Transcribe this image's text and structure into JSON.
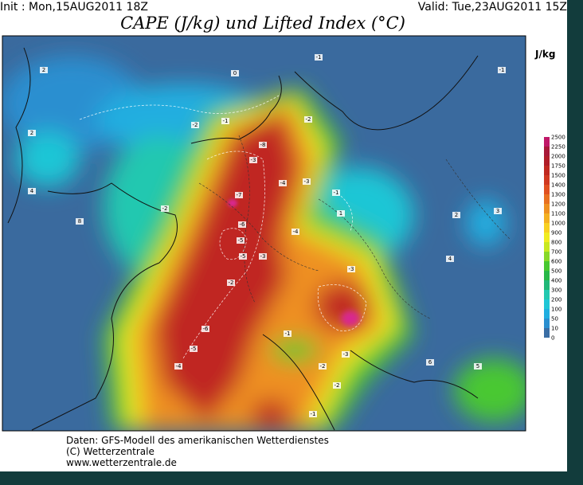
{
  "header": {
    "init": "Init : Mon,15AUG2011 18Z",
    "valid": "Valid: Tue,23AUG2011 15Z",
    "title": "CAPE (J/kg) und Lifted Index (°C)"
  },
  "colorbar": {
    "unit": "J/kg",
    "levels": [
      0,
      10,
      50,
      100,
      200,
      300,
      400,
      500,
      600,
      700,
      800,
      900,
      1000,
      1100,
      1200,
      1300,
      1400,
      1500,
      1750,
      2000,
      2250,
      2500
    ],
    "colors": [
      "#3a6ea5",
      "#2a8fd0",
      "#20aee0",
      "#1fc6d6",
      "#22c8b0",
      "#20b878",
      "#28b848",
      "#48c830",
      "#88d828",
      "#c8e820",
      "#f0ec20",
      "#f8d020",
      "#f4b020",
      "#ee9020",
      "#e87020",
      "#e05020",
      "#d03820",
      "#c02820",
      "#b01c28",
      "#a81838",
      "#c01868"
    ]
  },
  "map_labels": [
    "2",
    "-1",
    "-1",
    "2",
    "0",
    "-2",
    "-1",
    "-2",
    "-8",
    "-3",
    "-4",
    "-3",
    "-1",
    "1",
    "-7",
    "-6",
    "-5",
    "-2",
    "-4",
    "-5",
    "-3",
    "-2",
    "-6",
    "-5",
    "-4",
    "-1",
    "-2",
    "-3",
    "-2",
    "2",
    "3",
    "4",
    "6",
    "5",
    "8",
    "4",
    "-3",
    "-1"
  ],
  "footer": [
    "Daten: GFS-Modell des amerikanischen Wetterdienstes",
    "(C) Wetterzentrale",
    "www.wetterzentrale.de"
  ]
}
